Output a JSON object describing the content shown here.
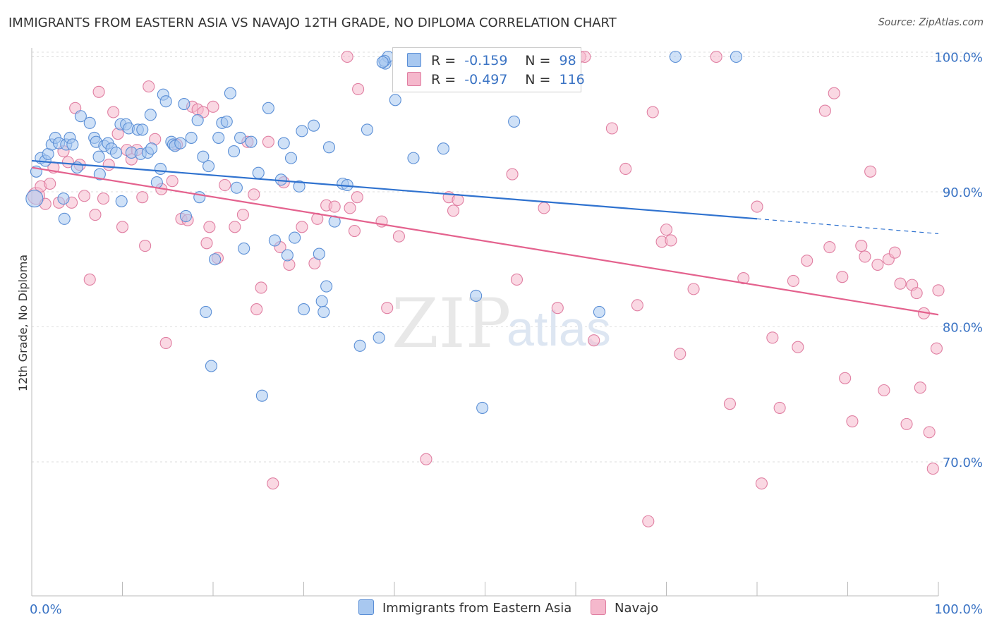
{
  "title": "IMMIGRANTS FROM EASTERN ASIA VS NAVAJO 12TH GRADE, NO DIPLOMA CORRELATION CHART",
  "source": "Source: ZipAtlas.com",
  "watermark": {
    "zip": "ZIP",
    "atlas": "atlas"
  },
  "colors": {
    "blue_fill": "#a8c8f0",
    "blue_stroke": "#5b8fd6",
    "blue_line": "#2f72cf",
    "pink_fill": "#f5b8cc",
    "pink_stroke": "#e07fa2",
    "pink_line": "#e4628e",
    "axis_label": "#3a73c4",
    "grid": "#dddddd"
  },
  "legend_top": [
    {
      "r_label": "R =",
      "r_value": "-0.159",
      "n_label": "N =",
      "n_value": "98",
      "color": "#a8c8f0",
      "stroke": "#5b8fd6"
    },
    {
      "r_label": "R =",
      "r_value": "-0.497",
      "n_label": "N =",
      "n_value": "116",
      "color": "#f5b8cc",
      "stroke": "#e07fa2"
    }
  ],
  "legend_bottom": [
    {
      "label": "Immigrants from Eastern Asia",
      "color": "#a8c8f0",
      "stroke": "#5b8fd6"
    },
    {
      "label": "Navajo",
      "color": "#f5b8cc",
      "stroke": "#e07fa2"
    }
  ],
  "chart_data": {
    "type": "scatter",
    "title": "IMMIGRANTS FROM EASTERN ASIA VS NAVAJO 12TH GRADE, NO DIPLOMA CORRELATION CHART",
    "xlabel": "",
    "ylabel": "12th Grade, No Diploma",
    "xlim": [
      0,
      100
    ],
    "ylim": [
      60,
      101.5
    ],
    "x_tick_labels": [
      "0.0%",
      "100.0%"
    ],
    "y_ticks": [
      70,
      80,
      90,
      100
    ],
    "y_tick_labels": [
      "70.0%",
      "80.0%",
      "90.0%",
      "100.0%"
    ],
    "grid": true,
    "legend_position": "top-center",
    "series": [
      {
        "name": "Immigrants from Eastern Asia",
        "trend": {
          "x": [
            0,
            80
          ],
          "y": [
            92.3,
            88.0
          ],
          "dashed_to": [
            100,
            86.9
          ]
        },
        "points": [
          [
            0.3,
            89.5
          ],
          [
            0.5,
            91.5
          ],
          [
            1.0,
            92.5
          ],
          [
            1.5,
            92.3
          ],
          [
            1.8,
            92.8
          ],
          [
            2.2,
            93.5
          ],
          [
            2.6,
            94.0
          ],
          [
            3.0,
            93.6
          ],
          [
            3.5,
            89.5
          ],
          [
            3.6,
            88.0
          ],
          [
            3.8,
            93.5
          ],
          [
            4.2,
            94.0
          ],
          [
            4.5,
            93.5
          ],
          [
            5.0,
            91.8
          ],
          [
            5.4,
            95.6
          ],
          [
            6.4,
            95.1
          ],
          [
            6.9,
            94.0
          ],
          [
            7.1,
            93.7
          ],
          [
            7.4,
            92.6
          ],
          [
            7.5,
            91.3
          ],
          [
            8.0,
            93.4
          ],
          [
            8.4,
            93.6
          ],
          [
            8.8,
            93.2
          ],
          [
            9.3,
            92.9
          ],
          [
            9.8,
            95.0
          ],
          [
            9.9,
            89.3
          ],
          [
            10.4,
            95.0
          ],
          [
            10.7,
            94.7
          ],
          [
            11.0,
            92.9
          ],
          [
            11.7,
            94.6
          ],
          [
            12.0,
            92.8
          ],
          [
            12.2,
            94.6
          ],
          [
            12.8,
            92.9
          ],
          [
            13.1,
            95.7
          ],
          [
            13.2,
            93.2
          ],
          [
            13.8,
            90.7
          ],
          [
            14.2,
            91.7
          ],
          [
            14.5,
            97.2
          ],
          [
            14.8,
            96.7
          ],
          [
            15.4,
            93.7
          ],
          [
            15.6,
            93.5
          ],
          [
            15.8,
            93.4
          ],
          [
            16.4,
            93.6
          ],
          [
            16.8,
            96.5
          ],
          [
            17.0,
            88.2
          ],
          [
            17.6,
            94.0
          ],
          [
            18.3,
            95.3
          ],
          [
            18.5,
            89.6
          ],
          [
            18.9,
            92.6
          ],
          [
            19.2,
            81.1
          ],
          [
            19.5,
            91.9
          ],
          [
            19.8,
            77.1
          ],
          [
            20.2,
            85.0
          ],
          [
            20.6,
            94.0
          ],
          [
            21.0,
            95.1
          ],
          [
            21.5,
            95.2
          ],
          [
            21.9,
            97.3
          ],
          [
            22.3,
            93.0
          ],
          [
            22.6,
            90.3
          ],
          [
            23.0,
            94.0
          ],
          [
            23.4,
            85.8
          ],
          [
            24.2,
            93.7
          ],
          [
            25.0,
            91.4
          ],
          [
            25.4,
            74.9
          ],
          [
            26.1,
            96.2
          ],
          [
            26.8,
            86.4
          ],
          [
            27.5,
            90.9
          ],
          [
            27.8,
            93.6
          ],
          [
            28.2,
            85.3
          ],
          [
            28.6,
            92.5
          ],
          [
            29.0,
            86.6
          ],
          [
            29.5,
            90.4
          ],
          [
            29.8,
            94.5
          ],
          [
            30.0,
            81.3
          ],
          [
            31.1,
            94.9
          ],
          [
            31.7,
            85.4
          ],
          [
            32.0,
            81.9
          ],
          [
            32.2,
            81.1
          ],
          [
            32.5,
            83.0
          ],
          [
            32.8,
            93.3
          ],
          [
            33.4,
            87.8
          ],
          [
            34.3,
            90.6
          ],
          [
            34.8,
            90.5
          ],
          [
            36.2,
            78.6
          ],
          [
            37.0,
            94.6
          ],
          [
            38.3,
            79.2
          ],
          [
            39.0,
            99.5
          ],
          [
            39.3,
            100.0
          ],
          [
            38.9,
            99.7
          ],
          [
            38.7,
            99.6
          ],
          [
            40.1,
            96.8
          ],
          [
            42.1,
            92.5
          ],
          [
            42.8,
            100.0
          ],
          [
            45.4,
            93.2
          ],
          [
            49.0,
            82.3
          ],
          [
            49.7,
            74.0
          ],
          [
            53.2,
            95.2
          ],
          [
            62.6,
            81.1
          ],
          [
            71.0,
            100.0
          ],
          [
            77.7,
            100.0
          ]
        ]
      },
      {
        "name": "Navajo",
        "trend": {
          "x": [
            0,
            100
          ],
          "y": [
            91.8,
            80.9
          ]
        },
        "points": [
          [
            0.5,
            89.7
          ],
          [
            1.0,
            90.4
          ],
          [
            1.5,
            89.1
          ],
          [
            2.0,
            90.6
          ],
          [
            2.4,
            91.8
          ],
          [
            3.0,
            89.2
          ],
          [
            3.5,
            93.0
          ],
          [
            4.0,
            92.2
          ],
          [
            4.4,
            89.2
          ],
          [
            4.8,
            96.2
          ],
          [
            5.3,
            92.0
          ],
          [
            5.8,
            89.7
          ],
          [
            6.4,
            83.5
          ],
          [
            7.0,
            88.3
          ],
          [
            7.4,
            97.4
          ],
          [
            7.9,
            89.5
          ],
          [
            8.5,
            92.0
          ],
          [
            9.0,
            95.9
          ],
          [
            9.5,
            94.3
          ],
          [
            10.0,
            87.4
          ],
          [
            10.5,
            93.1
          ],
          [
            11.0,
            92.4
          ],
          [
            11.6,
            93.1
          ],
          [
            12.2,
            89.6
          ],
          [
            12.5,
            86.0
          ],
          [
            12.9,
            97.8
          ],
          [
            13.6,
            93.9
          ],
          [
            14.3,
            90.2
          ],
          [
            14.8,
            78.8
          ],
          [
            15.5,
            90.8
          ],
          [
            16.0,
            93.5
          ],
          [
            16.5,
            88.0
          ],
          [
            17.2,
            87.9
          ],
          [
            17.7,
            96.3
          ],
          [
            18.3,
            96.1
          ],
          [
            18.9,
            95.9
          ],
          [
            19.3,
            86.2
          ],
          [
            19.6,
            87.4
          ],
          [
            20.0,
            96.3
          ],
          [
            20.5,
            85.1
          ],
          [
            21.3,
            90.5
          ],
          [
            22.4,
            87.4
          ],
          [
            23.3,
            88.3
          ],
          [
            23.8,
            93.7
          ],
          [
            24.5,
            89.8
          ],
          [
            24.8,
            81.3
          ],
          [
            25.3,
            82.9
          ],
          [
            26.1,
            93.7
          ],
          [
            26.6,
            68.4
          ],
          [
            27.4,
            85.9
          ],
          [
            27.8,
            90.7
          ],
          [
            28.4,
            84.6
          ],
          [
            29.8,
            87.4
          ],
          [
            31.2,
            84.7
          ],
          [
            31.5,
            88.0
          ],
          [
            32.5,
            89.0
          ],
          [
            33.4,
            88.9
          ],
          [
            34.8,
            100.0
          ],
          [
            35.1,
            88.8
          ],
          [
            35.6,
            87.1
          ],
          [
            35.9,
            89.6
          ],
          [
            36.0,
            97.6
          ],
          [
            38.6,
            87.8
          ],
          [
            39.2,
            81.4
          ],
          [
            40.5,
            86.7
          ],
          [
            43.5,
            70.2
          ],
          [
            46.0,
            89.6
          ],
          [
            46.5,
            88.6
          ],
          [
            47.0,
            89.4
          ],
          [
            52.5,
            100.0
          ],
          [
            53.0,
            91.3
          ],
          [
            53.5,
            83.5
          ],
          [
            56.5,
            88.8
          ],
          [
            58.0,
            81.4
          ],
          [
            60.5,
            100.0
          ],
          [
            61.0,
            100.0
          ],
          [
            62.0,
            79.0
          ],
          [
            64.0,
            94.7
          ],
          [
            65.5,
            91.7
          ],
          [
            66.8,
            81.6
          ],
          [
            68.0,
            65.6
          ],
          [
            68.5,
            95.9
          ],
          [
            69.5,
            86.3
          ],
          [
            70.0,
            87.2
          ],
          [
            70.5,
            86.4
          ],
          [
            71.5,
            78.0
          ],
          [
            73.0,
            82.8
          ],
          [
            75.5,
            100.0
          ],
          [
            77.0,
            74.3
          ],
          [
            78.5,
            83.6
          ],
          [
            80.0,
            88.9
          ],
          [
            80.5,
            68.4
          ],
          [
            81.7,
            79.2
          ],
          [
            82.5,
            74.0
          ],
          [
            84.0,
            83.4
          ],
          [
            84.5,
            78.5
          ],
          [
            85.5,
            84.9
          ],
          [
            87.5,
            96.0
          ],
          [
            88.0,
            85.9
          ],
          [
            88.5,
            97.3
          ],
          [
            89.4,
            83.7
          ],
          [
            89.7,
            76.2
          ],
          [
            90.5,
            73.0
          ],
          [
            91.5,
            86.0
          ],
          [
            91.9,
            85.2
          ],
          [
            92.5,
            91.5
          ],
          [
            93.3,
            84.6
          ],
          [
            94.0,
            75.3
          ],
          [
            94.5,
            85.0
          ],
          [
            95.2,
            85.5
          ],
          [
            95.8,
            83.2
          ],
          [
            96.5,
            72.8
          ],
          [
            97.1,
            83.1
          ],
          [
            97.6,
            82.5
          ],
          [
            98.0,
            75.5
          ],
          [
            98.4,
            81.0
          ],
          [
            99.0,
            72.2
          ],
          [
            99.4,
            69.5
          ],
          [
            99.8,
            78.4
          ],
          [
            100.0,
            82.7
          ]
        ]
      }
    ]
  }
}
